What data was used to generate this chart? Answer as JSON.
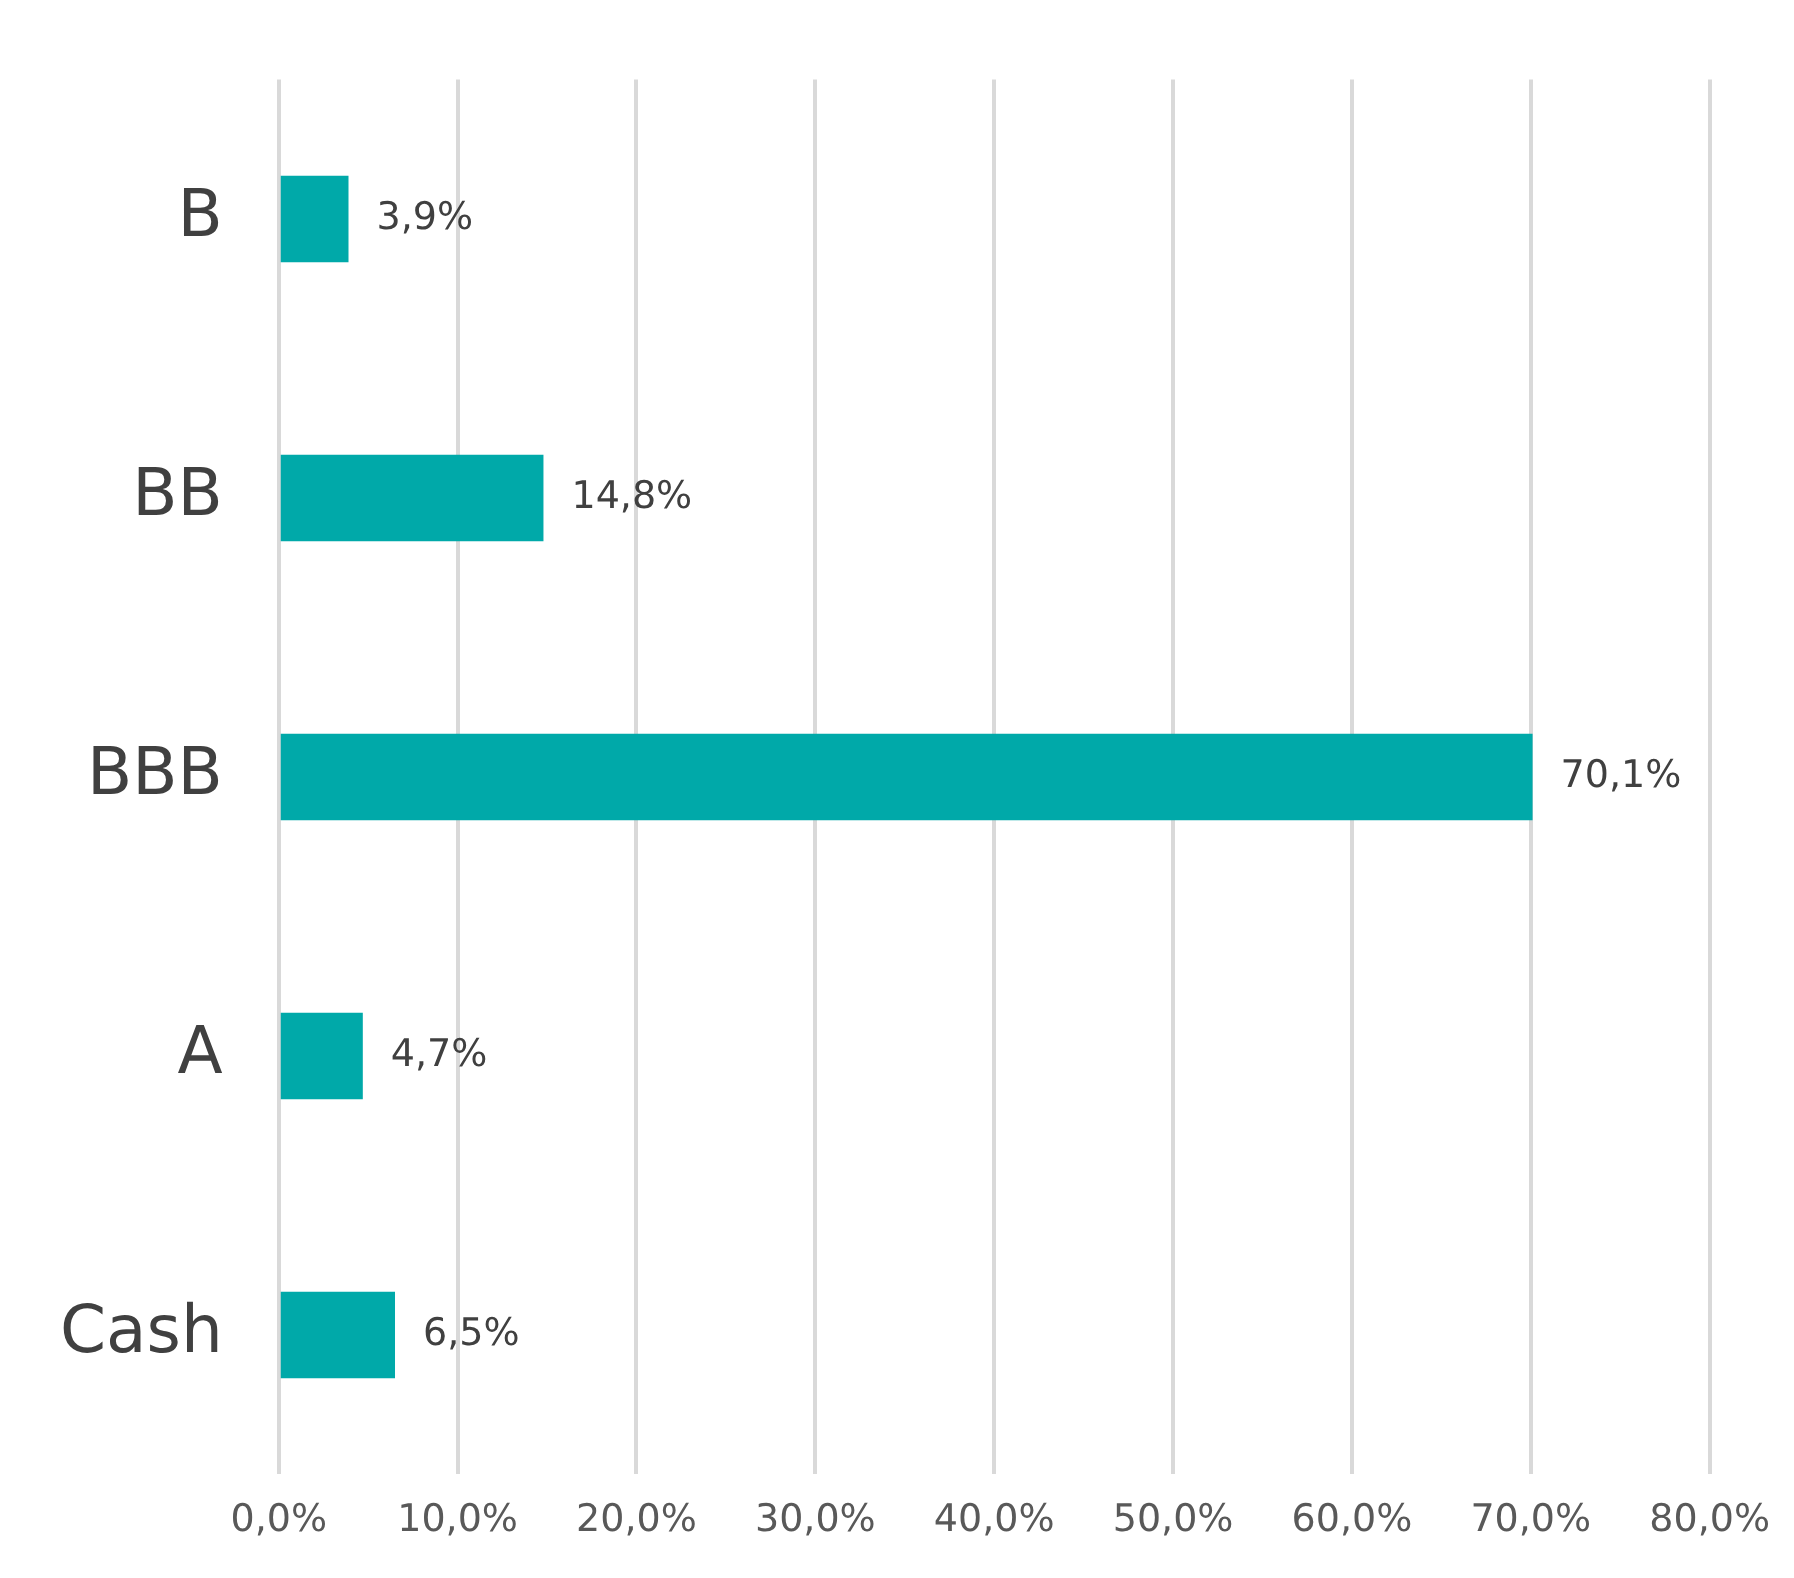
{
  "chart_data": {
    "type": "bar",
    "orientation": "horizontal",
    "categories": [
      "B",
      "BB",
      "BBB",
      "A",
      "Cash"
    ],
    "values": [
      3.9,
      14.8,
      70.1,
      4.7,
      6.5
    ],
    "value_labels": [
      "3,9%",
      "14,8%",
      "70,1%",
      "4,7%",
      "6,5%"
    ],
    "color": "#00a9a9",
    "xlim": [
      0,
      80
    ],
    "xticks": [
      {
        "value": 0,
        "label": "0,0%"
      },
      {
        "value": 10,
        "label": "10,0%"
      },
      {
        "value": 20,
        "label": "20,0%"
      },
      {
        "value": 30,
        "label": "30,0%"
      },
      {
        "value": 40,
        "label": "40,0%"
      },
      {
        "value": 50,
        "label": "50,0%"
      },
      {
        "value": 60,
        "label": "60,0%"
      },
      {
        "value": 70,
        "label": "70,0%"
      },
      {
        "value": 80,
        "label": "80,0%"
      }
    ],
    "grid": "x"
  }
}
